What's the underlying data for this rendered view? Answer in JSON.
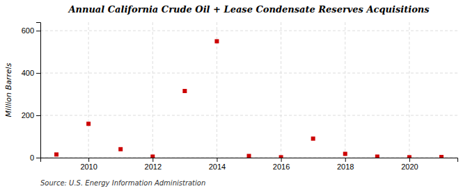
{
  "chart_data": {
    "type": "scatter",
    "title": "Annual California Crude Oil + Lease Condensate Reserves Acquisitions",
    "ylabel": "Million Barrels",
    "source": "Source: U.S. Energy Information Administration",
    "x": [
      2009,
      2010,
      2011,
      2012,
      2013,
      2014,
      2015,
      2016,
      2017,
      2018,
      2019,
      2020,
      2021
    ],
    "values": [
      15,
      160,
      40,
      5,
      315,
      550,
      8,
      2,
      90,
      18,
      5,
      2,
      3
    ],
    "color": "#cc0000",
    "marker": "square",
    "xlim": [
      2008.5,
      2021.5
    ],
    "ylim": [
      0,
      640
    ],
    "xticks": [
      2010,
      2012,
      2014,
      2016,
      2018,
      2020
    ],
    "yticks": [
      0,
      200,
      400,
      600
    ],
    "grid": true
  }
}
